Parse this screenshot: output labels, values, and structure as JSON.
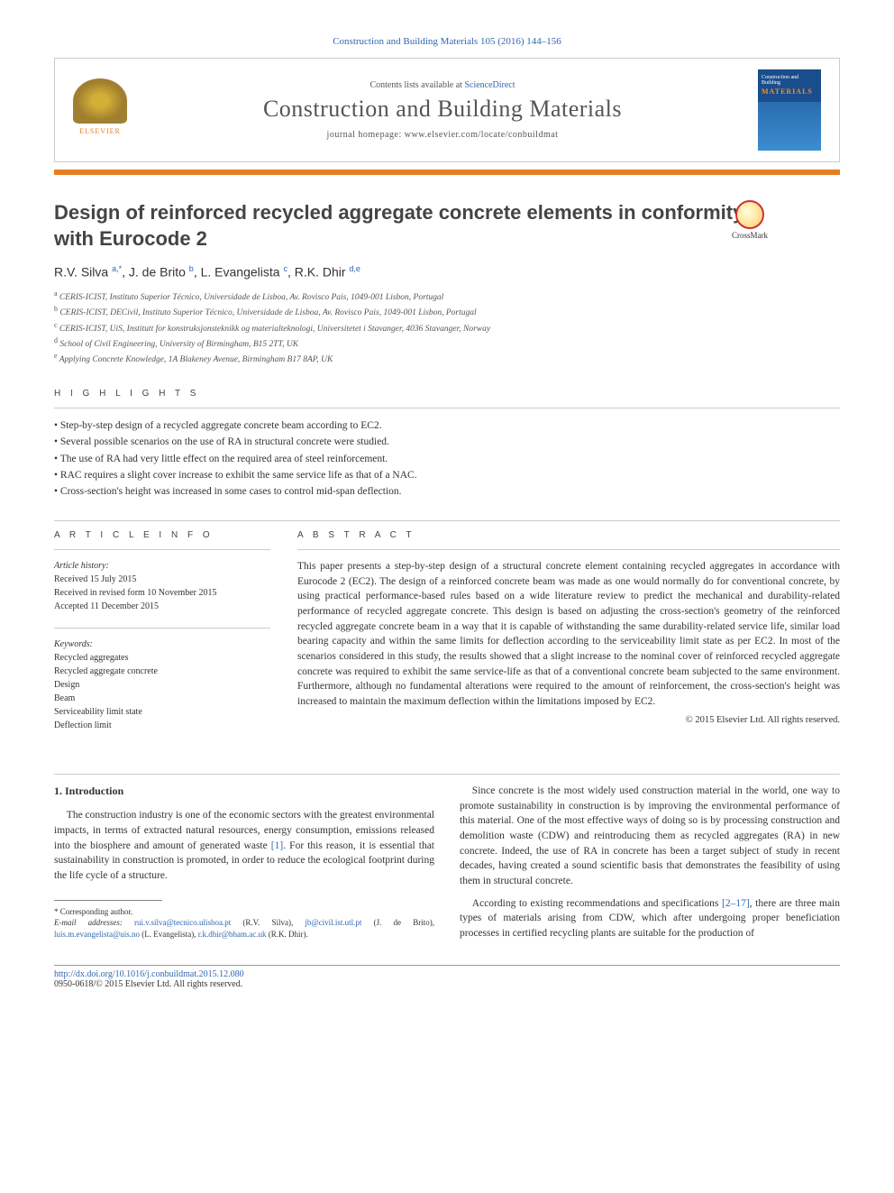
{
  "citation": "Construction and Building Materials 105 (2016) 144–156",
  "header": {
    "contents_prefix": "Contents lists available at ",
    "sd_label": "ScienceDirect",
    "journal": "Construction and Building Materials",
    "homepage_prefix": "journal homepage: ",
    "homepage_url": "www.elsevier.com/locate/conbuildmat",
    "elsevier": "ELSEVIER",
    "cover_line1": "Construction and Building",
    "cover_line2": "MATERIALS"
  },
  "title": "Design of reinforced recycled aggregate concrete elements in conformity with Eurocode 2",
  "crossmark": "CrossMark",
  "authors_html": "R.V. Silva <sup>a,*</sup>, J. de Brito <sup>b</sup>, L. Evangelista <sup>c</sup>, R.K. Dhir <sup>d,e</sup>",
  "affiliations": [
    "a CERIS-ICIST, Instituto Superior Técnico, Universidade de Lisboa, Av. Rovisco Pais, 1049-001 Lisbon, Portugal",
    "b CERIS-ICIST, DECivil, Instituto Superior Técnico, Universidade de Lisboa, Av. Rovisco Pais, 1049-001 Lisbon, Portugal",
    "c CERIS-ICIST, UiS, Institutt for konstruksjonsteknikk og materialteknologi, Universitetet i Stavanger, 4036 Stavanger, Norway",
    "d School of Civil Engineering, University of Birmingham, B15 2TT, UK",
    "e Applying Concrete Knowledge, 1A Blakeney Avenue, Birmingham B17 8AP, UK"
  ],
  "highlights_head": "H I G H L I G H T S",
  "highlights": [
    "Step-by-step design of a recycled aggregate concrete beam according to EC2.",
    "Several possible scenarios on the use of RA in structural concrete were studied.",
    "The use of RA had very little effect on the required area of steel reinforcement.",
    "RAC requires a slight cover increase to exhibit the same service life as that of a NAC.",
    "Cross-section's height was increased in some cases to control mid-span deflection."
  ],
  "info_head": "A R T I C L E   I N F O",
  "abs_head": "A B S T R A C T",
  "history": {
    "label": "Article history:",
    "received": "Received 15 July 2015",
    "revised": "Received in revised form 10 November 2015",
    "accepted": "Accepted 11 December 2015"
  },
  "keywords_label": "Keywords:",
  "keywords": [
    "Recycled aggregates",
    "Recycled aggregate concrete",
    "Design",
    "Beam",
    "Serviceability limit state",
    "Deflection limit"
  ],
  "abstract": "This paper presents a step-by-step design of a structural concrete element containing recycled aggregates in accordance with Eurocode 2 (EC2). The design of a reinforced concrete beam was made as one would normally do for conventional concrete, by using practical performance-based rules based on a wide literature review to predict the mechanical and durability-related performance of recycled aggregate concrete. This design is based on adjusting the cross-section's geometry of the reinforced recycled aggregate concrete beam in a way that it is capable of withstanding the same durability-related service life, similar load bearing capacity and within the same limits for deflection according to the serviceability limit state as per EC2. In most of the scenarios considered in this study, the results showed that a slight increase to the nominal cover of reinforced recycled aggregate concrete was required to exhibit the same service-life as that of a conventional concrete beam subjected to the same environment. Furthermore, although no fundamental alterations were required to the amount of reinforcement, the cross-section's height was increased to maintain the maximum deflection within the limitations imposed by EC2.",
  "copyright": "© 2015 Elsevier Ltd. All rights reserved.",
  "intro_head": "1. Introduction",
  "intro_left_p1_a": "The construction industry is one of the economic sectors with the greatest environmental impacts, in terms of extracted natural resources, energy consumption, emissions released into the biosphere and amount of generated waste ",
  "intro_left_ref1": "[1]",
  "intro_left_p1_b": ". For this reason, it is essential that sustainability in construction is promoted, in order to reduce the ecological footprint during the life cycle of a structure.",
  "intro_right_p1": "Since concrete is the most widely used construction material in the world, one way to promote sustainability in construction is by improving the environmental performance of this material. One of the most effective ways of doing so is by processing construction and demolition waste (CDW) and reintroducing them as recycled aggregates (RA) in new concrete. Indeed, the use of RA in concrete has been a target subject of study in recent decades, having created a sound scientific basis that demonstrates the feasibility of using them in structural concrete.",
  "intro_right_p2_a": "According to existing recommendations and specifications ",
  "intro_right_ref2": "[2–17]",
  "intro_right_p2_b": ", there are three main types of materials arising from CDW, which after undergoing proper beneficiation processes in certified recycling plants are suitable for the production of",
  "footnotes": {
    "corr": "* Corresponding author.",
    "emails_label": "E-mail addresses:",
    "e1": "rui.v.silva@tecnico.ulisboa.pt",
    "n1": "(R.V. Silva),",
    "e2": "jb@civil.ist.utl.pt",
    "n2": "(J. de Brito),",
    "e3": "luis.m.evangelista@uis.no",
    "n3": "(L. Evangelista),",
    "e4": "r.k.dhir@bham.ac.uk",
    "n4": "(R.K. Dhir)."
  },
  "doi_line": "http://dx.doi.org/10.1016/j.conbuildmat.2015.12.080",
  "issn_line": "0950-0618/© 2015 Elsevier Ltd. All rights reserved.",
  "colors": {
    "link_blue": "#3068b0",
    "accent_orange": "#e67e22",
    "text_grey": "#555555"
  }
}
